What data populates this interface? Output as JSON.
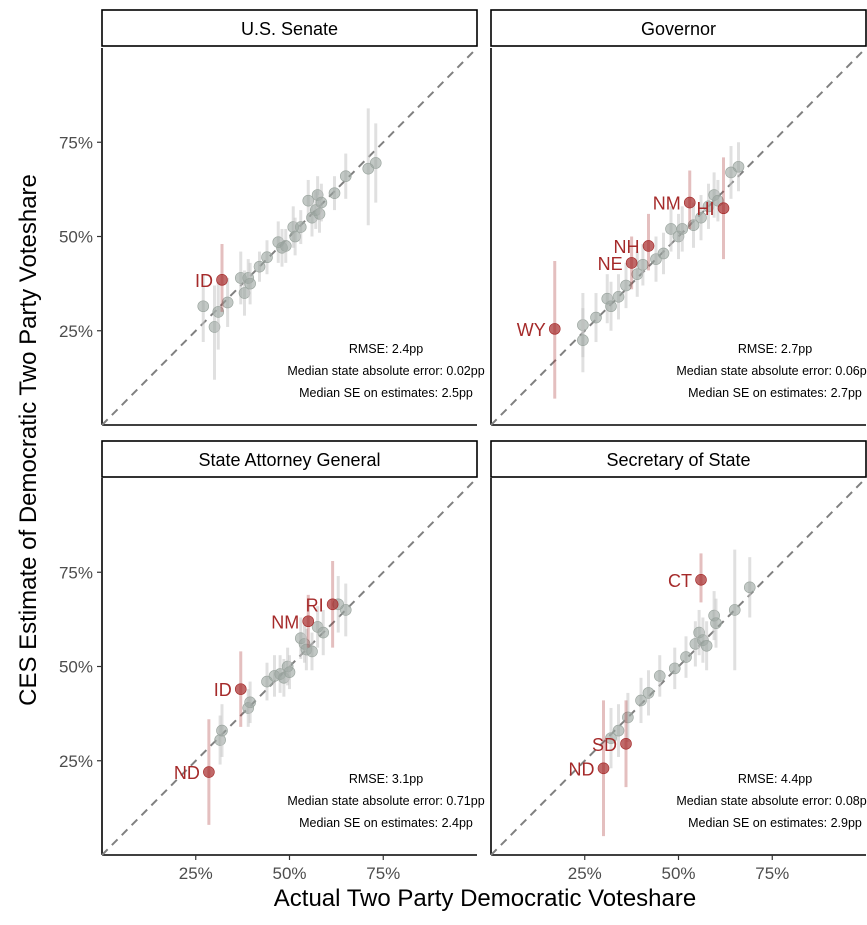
{
  "figure": {
    "xlabel": "Actual Two Party Democratic Voteshare",
    "ylabel": "CES Estimate of Democratic Two Party Voteshare",
    "tick_labels": [
      "25%",
      "50%",
      "75%"
    ],
    "colors": {
      "outlier": "#a52a2a",
      "normal": "#9aa49e",
      "dashed": "#808080",
      "frame": "#000000"
    }
  },
  "chart_data": [
    {
      "type": "scatter",
      "title": "U.S. Senate",
      "xlim": [
        0,
        1
      ],
      "ylim": [
        0,
        1
      ],
      "stats": [
        "RMSE: 2.4pp",
        "Median state absolute error: 0.02pp",
        "Median SE on estimates: 2.5pp"
      ],
      "points": [
        {
          "x": 0.27,
          "y": 0.315,
          "lo": 0.22,
          "hi": 0.4
        },
        {
          "x": 0.3,
          "y": 0.26,
          "lo": 0.12,
          "hi": 0.37
        },
        {
          "x": 0.31,
          "y": 0.3,
          "lo": 0.2,
          "hi": 0.38
        },
        {
          "x": 0.32,
          "y": 0.385,
          "lo": 0.3,
          "hi": 0.48,
          "label": "ID"
        },
        {
          "x": 0.335,
          "y": 0.325,
          "lo": 0.26,
          "hi": 0.39
        },
        {
          "x": 0.37,
          "y": 0.39,
          "lo": 0.32,
          "hi": 0.46
        },
        {
          "x": 0.38,
          "y": 0.35,
          "lo": 0.29,
          "hi": 0.41
        },
        {
          "x": 0.39,
          "y": 0.39,
          "lo": 0.34,
          "hi": 0.44
        },
        {
          "x": 0.395,
          "y": 0.375,
          "lo": 0.32,
          "hi": 0.43
        },
        {
          "x": 0.42,
          "y": 0.42,
          "lo": 0.38,
          "hi": 0.46
        },
        {
          "x": 0.44,
          "y": 0.445,
          "lo": 0.4,
          "hi": 0.49
        },
        {
          "x": 0.47,
          "y": 0.485,
          "lo": 0.43,
          "hi": 0.54
        },
        {
          "x": 0.48,
          "y": 0.47,
          "lo": 0.42,
          "hi": 0.52
        },
        {
          "x": 0.49,
          "y": 0.475,
          "lo": 0.43,
          "hi": 0.52
        },
        {
          "x": 0.51,
          "y": 0.525,
          "lo": 0.47,
          "hi": 0.58
        },
        {
          "x": 0.515,
          "y": 0.5,
          "lo": 0.45,
          "hi": 0.55
        },
        {
          "x": 0.53,
          "y": 0.525,
          "lo": 0.48,
          "hi": 0.57
        },
        {
          "x": 0.55,
          "y": 0.595,
          "lo": 0.54,
          "hi": 0.65
        },
        {
          "x": 0.56,
          "y": 0.55,
          "lo": 0.5,
          "hi": 0.6
        },
        {
          "x": 0.57,
          "y": 0.57,
          "lo": 0.52,
          "hi": 0.62
        },
        {
          "x": 0.575,
          "y": 0.61,
          "lo": 0.56,
          "hi": 0.66
        },
        {
          "x": 0.58,
          "y": 0.56,
          "lo": 0.51,
          "hi": 0.61
        },
        {
          "x": 0.585,
          "y": 0.59,
          "lo": 0.54,
          "hi": 0.64
        },
        {
          "x": 0.62,
          "y": 0.615,
          "lo": 0.57,
          "hi": 0.66
        },
        {
          "x": 0.65,
          "y": 0.66,
          "lo": 0.6,
          "hi": 0.72
        },
        {
          "x": 0.71,
          "y": 0.68,
          "lo": 0.53,
          "hi": 0.84
        },
        {
          "x": 0.73,
          "y": 0.695,
          "lo": 0.59,
          "hi": 0.8
        }
      ]
    },
    {
      "type": "scatter",
      "title": "Governor",
      "xlim": [
        0,
        1
      ],
      "ylim": [
        0,
        1
      ],
      "stats": [
        "RMSE: 2.7pp",
        "Median state absolute error: 0.06pp",
        "Median SE on estimates: 2.7pp"
      ],
      "points": [
        {
          "x": 0.17,
          "y": 0.255,
          "lo": 0.07,
          "hi": 0.435,
          "label": "WY"
        },
        {
          "x": 0.245,
          "y": 0.265,
          "lo": 0.18,
          "hi": 0.35
        },
        {
          "x": 0.245,
          "y": 0.225,
          "lo": 0.14,
          "hi": 0.31
        },
        {
          "x": 0.28,
          "y": 0.285,
          "lo": 0.22,
          "hi": 0.35
        },
        {
          "x": 0.31,
          "y": 0.335,
          "lo": 0.27,
          "hi": 0.4
        },
        {
          "x": 0.32,
          "y": 0.315,
          "lo": 0.25,
          "hi": 0.38
        },
        {
          "x": 0.34,
          "y": 0.34,
          "lo": 0.28,
          "hi": 0.4
        },
        {
          "x": 0.36,
          "y": 0.37,
          "lo": 0.31,
          "hi": 0.43
        },
        {
          "x": 0.375,
          "y": 0.43,
          "lo": 0.36,
          "hi": 0.5,
          "label": "NE"
        },
        {
          "x": 0.39,
          "y": 0.4,
          "lo": 0.34,
          "hi": 0.46
        },
        {
          "x": 0.405,
          "y": 0.425,
          "lo": 0.37,
          "hi": 0.48
        },
        {
          "x": 0.42,
          "y": 0.475,
          "lo": 0.41,
          "hi": 0.56,
          "label": "NH"
        },
        {
          "x": 0.44,
          "y": 0.44,
          "lo": 0.38,
          "hi": 0.5
        },
        {
          "x": 0.46,
          "y": 0.455,
          "lo": 0.4,
          "hi": 0.51
        },
        {
          "x": 0.48,
          "y": 0.52,
          "lo": 0.46,
          "hi": 0.58
        },
        {
          "x": 0.5,
          "y": 0.5,
          "lo": 0.44,
          "hi": 0.56
        },
        {
          "x": 0.51,
          "y": 0.52,
          "lo": 0.46,
          "hi": 0.58
        },
        {
          "x": 0.53,
          "y": 0.59,
          "lo": 0.52,
          "hi": 0.675,
          "label": "NM"
        },
        {
          "x": 0.54,
          "y": 0.53,
          "lo": 0.47,
          "hi": 0.59
        },
        {
          "x": 0.56,
          "y": 0.55,
          "lo": 0.49,
          "hi": 0.61
        },
        {
          "x": 0.58,
          "y": 0.58,
          "lo": 0.52,
          "hi": 0.64
        },
        {
          "x": 0.595,
          "y": 0.61,
          "lo": 0.55,
          "hi": 0.67
        },
        {
          "x": 0.605,
          "y": 0.595,
          "lo": 0.54,
          "hi": 0.65
        },
        {
          "x": 0.62,
          "y": 0.575,
          "lo": 0.44,
          "hi": 0.71,
          "label": "HI"
        },
        {
          "x": 0.64,
          "y": 0.67,
          "lo": 0.6,
          "hi": 0.74
        },
        {
          "x": 0.66,
          "y": 0.685,
          "lo": 0.62,
          "hi": 0.75
        }
      ]
    },
    {
      "type": "scatter",
      "title": "State Attorney General",
      "xlim": [
        0,
        1
      ],
      "ylim": [
        0,
        1
      ],
      "stats": [
        "RMSE: 3.1pp",
        "Median state absolute error: 0.71pp",
        "Median SE on estimates: 2.4pp"
      ],
      "points": [
        {
          "x": 0.285,
          "y": 0.22,
          "lo": 0.08,
          "hi": 0.36,
          "label": "ND"
        },
        {
          "x": 0.315,
          "y": 0.305,
          "lo": 0.24,
          "hi": 0.37
        },
        {
          "x": 0.32,
          "y": 0.33,
          "lo": 0.26,
          "hi": 0.4
        },
        {
          "x": 0.37,
          "y": 0.44,
          "lo": 0.34,
          "hi": 0.54,
          "label": "ID"
        },
        {
          "x": 0.39,
          "y": 0.39,
          "lo": 0.34,
          "hi": 0.44
        },
        {
          "x": 0.395,
          "y": 0.405,
          "lo": 0.35,
          "hi": 0.46
        },
        {
          "x": 0.44,
          "y": 0.46,
          "lo": 0.41,
          "hi": 0.51
        },
        {
          "x": 0.46,
          "y": 0.475,
          "lo": 0.42,
          "hi": 0.53
        },
        {
          "x": 0.475,
          "y": 0.48,
          "lo": 0.43,
          "hi": 0.53
        },
        {
          "x": 0.485,
          "y": 0.47,
          "lo": 0.42,
          "hi": 0.52
        },
        {
          "x": 0.495,
          "y": 0.5,
          "lo": 0.45,
          "hi": 0.55
        },
        {
          "x": 0.5,
          "y": 0.485,
          "lo": 0.44,
          "hi": 0.53
        },
        {
          "x": 0.53,
          "y": 0.575,
          "lo": 0.52,
          "hi": 0.63
        },
        {
          "x": 0.54,
          "y": 0.56,
          "lo": 0.51,
          "hi": 0.61
        },
        {
          "x": 0.545,
          "y": 0.545,
          "lo": 0.49,
          "hi": 0.6
        },
        {
          "x": 0.55,
          "y": 0.62,
          "lo": 0.55,
          "hi": 0.69,
          "label": "NM"
        },
        {
          "x": 0.56,
          "y": 0.54,
          "lo": 0.49,
          "hi": 0.59
        },
        {
          "x": 0.575,
          "y": 0.605,
          "lo": 0.55,
          "hi": 0.66
        },
        {
          "x": 0.59,
          "y": 0.59,
          "lo": 0.53,
          "hi": 0.65
        },
        {
          "x": 0.615,
          "y": 0.665,
          "lo": 0.55,
          "hi": 0.78,
          "label": "RI"
        },
        {
          "x": 0.63,
          "y": 0.665,
          "lo": 0.59,
          "hi": 0.74
        },
        {
          "x": 0.65,
          "y": 0.65,
          "lo": 0.58,
          "hi": 0.72
        }
      ]
    },
    {
      "type": "scatter",
      "title": "Secretary of State",
      "xlim": [
        0,
        1
      ],
      "ylim": [
        0,
        1
      ],
      "stats": [
        "RMSE: 4.4pp",
        "Median state absolute error: 0.08pp",
        "Median SE on estimates: 2.9pp"
      ],
      "points": [
        {
          "x": 0.3,
          "y": 0.23,
          "lo": 0.05,
          "hi": 0.41,
          "label": "ND"
        },
        {
          "x": 0.32,
          "y": 0.31,
          "lo": 0.23,
          "hi": 0.39
        },
        {
          "x": 0.34,
          "y": 0.33,
          "lo": 0.26,
          "hi": 0.4
        },
        {
          "x": 0.36,
          "y": 0.295,
          "lo": 0.18,
          "hi": 0.41,
          "label": "SD"
        },
        {
          "x": 0.365,
          "y": 0.365,
          "lo": 0.3,
          "hi": 0.43
        },
        {
          "x": 0.4,
          "y": 0.41,
          "lo": 0.35,
          "hi": 0.47
        },
        {
          "x": 0.42,
          "y": 0.43,
          "lo": 0.37,
          "hi": 0.49
        },
        {
          "x": 0.45,
          "y": 0.475,
          "lo": 0.42,
          "hi": 0.53
        },
        {
          "x": 0.49,
          "y": 0.495,
          "lo": 0.44,
          "hi": 0.55
        },
        {
          "x": 0.52,
          "y": 0.525,
          "lo": 0.47,
          "hi": 0.58
        },
        {
          "x": 0.545,
          "y": 0.56,
          "lo": 0.5,
          "hi": 0.62
        },
        {
          "x": 0.555,
          "y": 0.59,
          "lo": 0.53,
          "hi": 0.65
        },
        {
          "x": 0.56,
          "y": 0.73,
          "lo": 0.67,
          "hi": 0.8,
          "label": "CT"
        },
        {
          "x": 0.565,
          "y": 0.57,
          "lo": 0.51,
          "hi": 0.63
        },
        {
          "x": 0.575,
          "y": 0.555,
          "lo": 0.49,
          "hi": 0.62
        },
        {
          "x": 0.595,
          "y": 0.635,
          "lo": 0.57,
          "hi": 0.7
        },
        {
          "x": 0.6,
          "y": 0.615,
          "lo": 0.55,
          "hi": 0.68
        },
        {
          "x": 0.65,
          "y": 0.65,
          "lo": 0.49,
          "hi": 0.81
        },
        {
          "x": 0.69,
          "y": 0.71,
          "lo": 0.63,
          "hi": 0.79
        }
      ]
    }
  ]
}
